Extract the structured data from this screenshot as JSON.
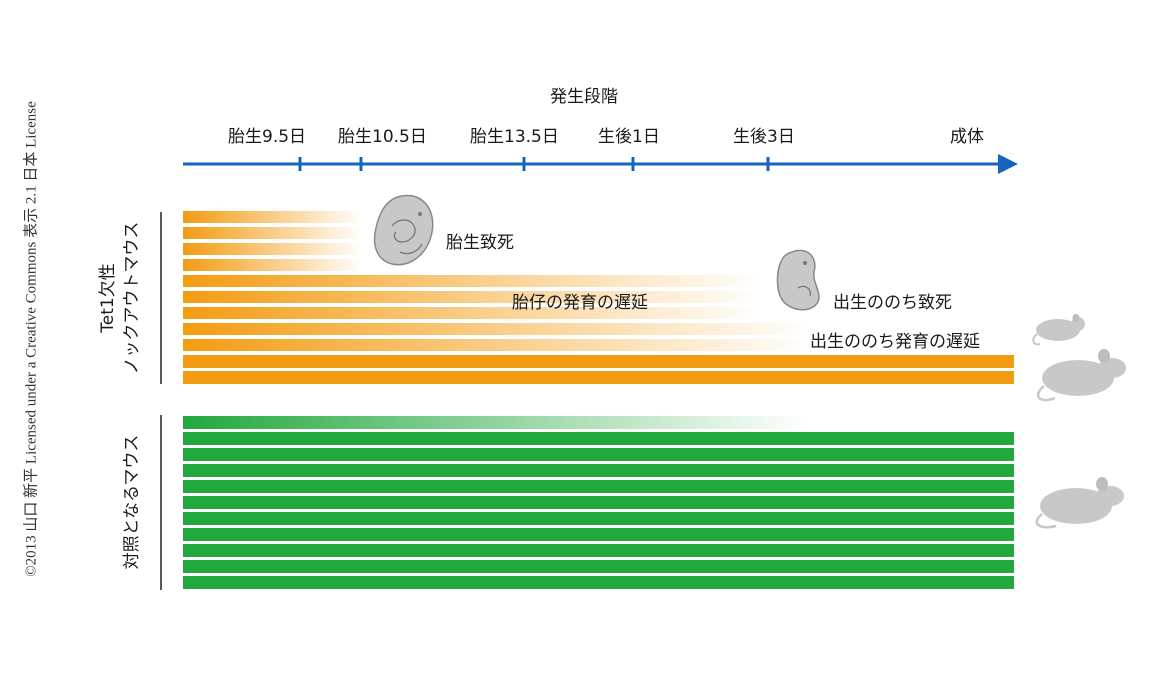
{
  "credit": "©2013 山口 新平 Licensed under a Creative Commons 表示 2.1 日本 License",
  "timeline": {
    "title": "発生段階",
    "stages": [
      "胎生9.5日",
      "胎生10.5日",
      "胎生13.5日",
      "生後1日",
      "生後3日",
      "成体"
    ]
  },
  "groups": {
    "knockout": {
      "label_line1": "Tet1欠性",
      "label_line2": "ノックアウトマウス",
      "color": "#f39c12",
      "outcomes": {
        "embryonic_lethal": "胎生致死",
        "fetal_delay": "胎仔の発育の遅延",
        "postnatal_death": "出生ののち致死",
        "postnatal_delay": "出生ののち発育の遅延"
      }
    },
    "control": {
      "label": "対照となるマウス",
      "color": "#22a83d"
    }
  },
  "colors": {
    "axis": "#1565c0",
    "knockout": "#f39c12",
    "control": "#22a83d",
    "figure_gray": "#c8c8c8"
  }
}
